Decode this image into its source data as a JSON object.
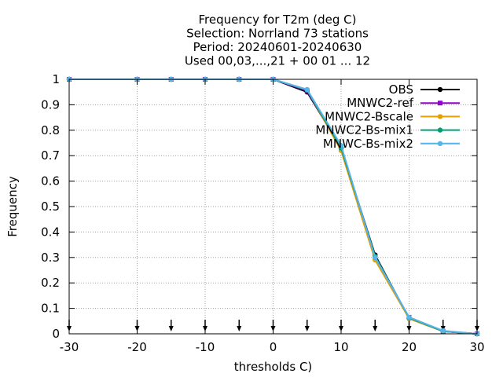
{
  "chart_data": {
    "type": "line",
    "title_lines": [
      "Frequency  for T2m (deg C)",
      "Selection: Norrland     73 stations",
      "Period: 20240601-20240630",
      "Used 00,03,...,21 + 00 01 ... 12"
    ],
    "xlabel": "thresholds C)",
    "ylabel": "Frequency",
    "xlim": [
      -30,
      30
    ],
    "ylim": [
      0,
      1
    ],
    "xticks": [
      -30,
      -20,
      -10,
      0,
      10,
      20,
      30
    ],
    "yticks": [
      0,
      0.1,
      0.2,
      0.3,
      0.4,
      0.5,
      0.6,
      0.7,
      0.8,
      0.9,
      1
    ],
    "grid": true,
    "legend_position": "top-right",
    "arrow_markers_x": [
      -30,
      -20,
      -15,
      -10,
      -5,
      0,
      5,
      10,
      15,
      20,
      25,
      30
    ],
    "x": [
      -30,
      -20,
      -15,
      -10,
      -5,
      0,
      5,
      10,
      15,
      20,
      25,
      30
    ],
    "series": [
      {
        "name": "OBS",
        "color": "#000000",
        "marker": "circle",
        "values": [
          1,
          1,
          1,
          1,
          1,
          1,
          0.95,
          0.73,
          0.31,
          0.06,
          0.01,
          0
        ]
      },
      {
        "name": "MNWC2-ref",
        "color": "#9400d3",
        "marker": "square",
        "values": [
          1,
          1,
          1,
          1,
          1,
          1,
          0.955,
          0.725,
          0.3,
          0.065,
          0.01,
          0
        ]
      },
      {
        "name": "MNWC2-Bscale",
        "color": "#e69f00",
        "marker": "circle",
        "values": [
          1,
          1,
          1,
          1,
          1,
          1,
          0.96,
          0.72,
          0.29,
          0.06,
          0.01,
          0
        ]
      },
      {
        "name": "MNWC2-Bs-mix1",
        "color": "#009e73",
        "marker": "circle",
        "values": [
          1,
          1,
          1,
          1,
          1,
          1,
          0.958,
          0.73,
          0.305,
          0.063,
          0.01,
          0
        ]
      },
      {
        "name": "MNWC-Bs-mix2",
        "color": "#56b4e9",
        "marker": "circle",
        "values": [
          1,
          1,
          1,
          1,
          1,
          1,
          0.96,
          0.74,
          0.3,
          0.065,
          0.012,
          0
        ]
      }
    ]
  }
}
